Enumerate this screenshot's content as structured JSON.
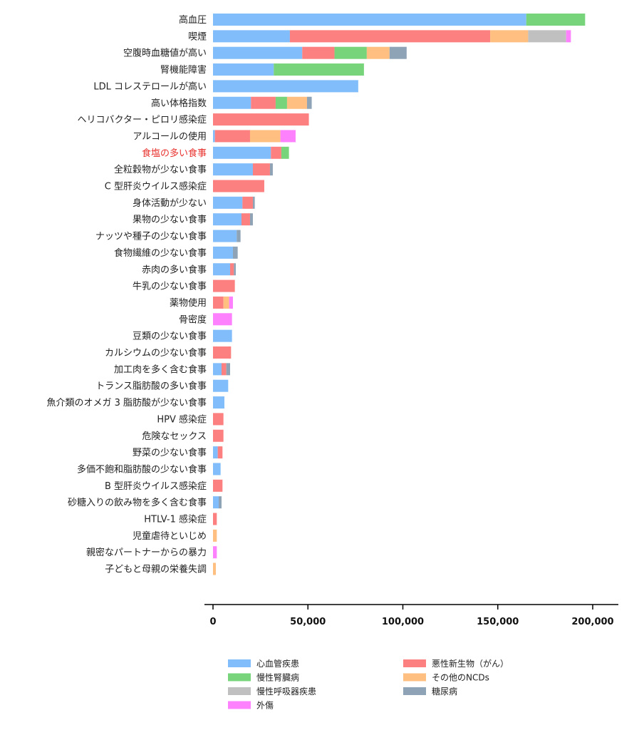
{
  "chart_data": {
    "type": "bar",
    "orientation": "horizontal",
    "stacked": true,
    "highlight_category": "食塩の多い食事",
    "highlight_color": "#e8322d",
    "xlim": [
      0,
      200000
    ],
    "xticks": [
      0,
      50000,
      100000,
      150000,
      200000
    ],
    "xtick_labels": [
      "0",
      "50,000",
      "100,000",
      "150,000",
      "200,000"
    ],
    "grid": false,
    "legend_position": "bottom",
    "categories": [
      "高血圧",
      "喫煙",
      "空腹時血糖値が高い",
      "腎機能障害",
      "LDL コレステロールが高い",
      "高い体格指数",
      "ヘリコバクター・ピロリ感染症",
      "アルコールの使用",
      "食塩の多い食事",
      "全粒穀物が少ない食事",
      "C 型肝炎ウイルス感染症",
      "身体活動が少ない",
      "果物の少ない食事",
      "ナッツや種子の少ない食事",
      "食物繊維の少ない食事",
      "赤肉の多い食事",
      "牛乳の少ない食事",
      "薬物使用",
      "骨密度",
      "豆類の少ない食事",
      "カルシウムの少ない食事",
      "加工肉を多く含む食事",
      "トランス脂肪酸の多い食事",
      "魚介類のオメガ 3 脂肪酸が少ない食事",
      "HPV 感染症",
      "危険なセックス",
      "野菜の少ない食事",
      "多価不飽和脂肪酸の少ない食事",
      "B 型肝炎ウイルス感染症",
      "砂糖入りの飲み物を多く含む食事",
      "HTLV-1 感染症",
      "児童虐待といじめ",
      "親密なパートナーからの暴力",
      "子どもと母親の栄養失調"
    ],
    "series": [
      {
        "name": "心血管疾患",
        "color": "#80bdfa",
        "values": [
          165000,
          40500,
          47000,
          32000,
          76500,
          20000,
          0,
          1000,
          30500,
          21000,
          0,
          15500,
          15000,
          12500,
          10500,
          9000,
          0,
          0,
          0,
          10000,
          0,
          4500,
          8000,
          6000,
          0,
          0,
          2500,
          4000,
          0,
          3000,
          0,
          0,
          0,
          0
        ]
      },
      {
        "name": "悪性新生物（がん）",
        "color": "#fc8080",
        "values": [
          0,
          105500,
          17000,
          0,
          0,
          13000,
          50500,
          18500,
          5500,
          9000,
          27000,
          5500,
          4500,
          0,
          0,
          2000,
          11500,
          5500,
          0,
          0,
          9500,
          2500,
          0,
          0,
          5500,
          5500,
          2500,
          0,
          5000,
          0,
          2000,
          0,
          0,
          0
        ]
      },
      {
        "name": "慢性腎臓病",
        "color": "#77d47a",
        "values": [
          31000,
          0,
          17000,
          47500,
          0,
          6000,
          0,
          0,
          4000,
          0,
          0,
          0,
          0,
          0,
          0,
          0,
          0,
          0,
          0,
          0,
          0,
          0,
          0,
          0,
          0,
          0,
          0,
          0,
          0,
          0,
          0,
          0,
          0,
          0
        ]
      },
      {
        "name": "その他のNCDs",
        "color": "#ffbf80",
        "values": [
          0,
          20000,
          12000,
          0,
          0,
          10500,
          0,
          16000,
          0,
          0,
          0,
          0,
          0,
          0,
          0,
          0,
          0,
          3000,
          0,
          0,
          0,
          0,
          0,
          0,
          0,
          0,
          0,
          0,
          0,
          0,
          0,
          2000,
          0,
          1500
        ]
      },
      {
        "name": "慢性呼吸器疾患",
        "color": "#c0c0c0",
        "values": [
          0,
          20000,
          0,
          0,
          0,
          0,
          0,
          0,
          0,
          0,
          0,
          0,
          0,
          0,
          0,
          0,
          0,
          0,
          0,
          0,
          0,
          0,
          0,
          0,
          0,
          0,
          0,
          0,
          0,
          0,
          0,
          0,
          0,
          0
        ]
      },
      {
        "name": "糖尿病",
        "color": "#8fa3b6",
        "values": [
          0,
          0,
          9000,
          0,
          0,
          2500,
          0,
          0,
          0,
          1500,
          0,
          1000,
          1500,
          2000,
          2500,
          1000,
          0,
          0,
          0,
          0,
          0,
          2000,
          0,
          0,
          0,
          0,
          0,
          0,
          0,
          1500,
          0,
          0,
          0,
          0
        ]
      },
      {
        "name": "外傷",
        "color": "#fd80fd",
        "values": [
          0,
          2500,
          0,
          0,
          0,
          0,
          0,
          8000,
          0,
          0,
          0,
          0,
          0,
          0,
          0,
          0,
          0,
          2000,
          10000,
          0,
          0,
          0,
          0,
          0,
          0,
          0,
          0,
          0,
          0,
          0,
          0,
          0,
          2000,
          0
        ]
      }
    ],
    "legend_order": [
      "心血管疾患",
      "悪性新生物（がん）",
      "慢性腎臓病",
      "その他のNCDs",
      "慢性呼吸器疾患",
      "糖尿病",
      "外傷"
    ],
    "title": "",
    "xlabel": "",
    "ylabel": ""
  }
}
